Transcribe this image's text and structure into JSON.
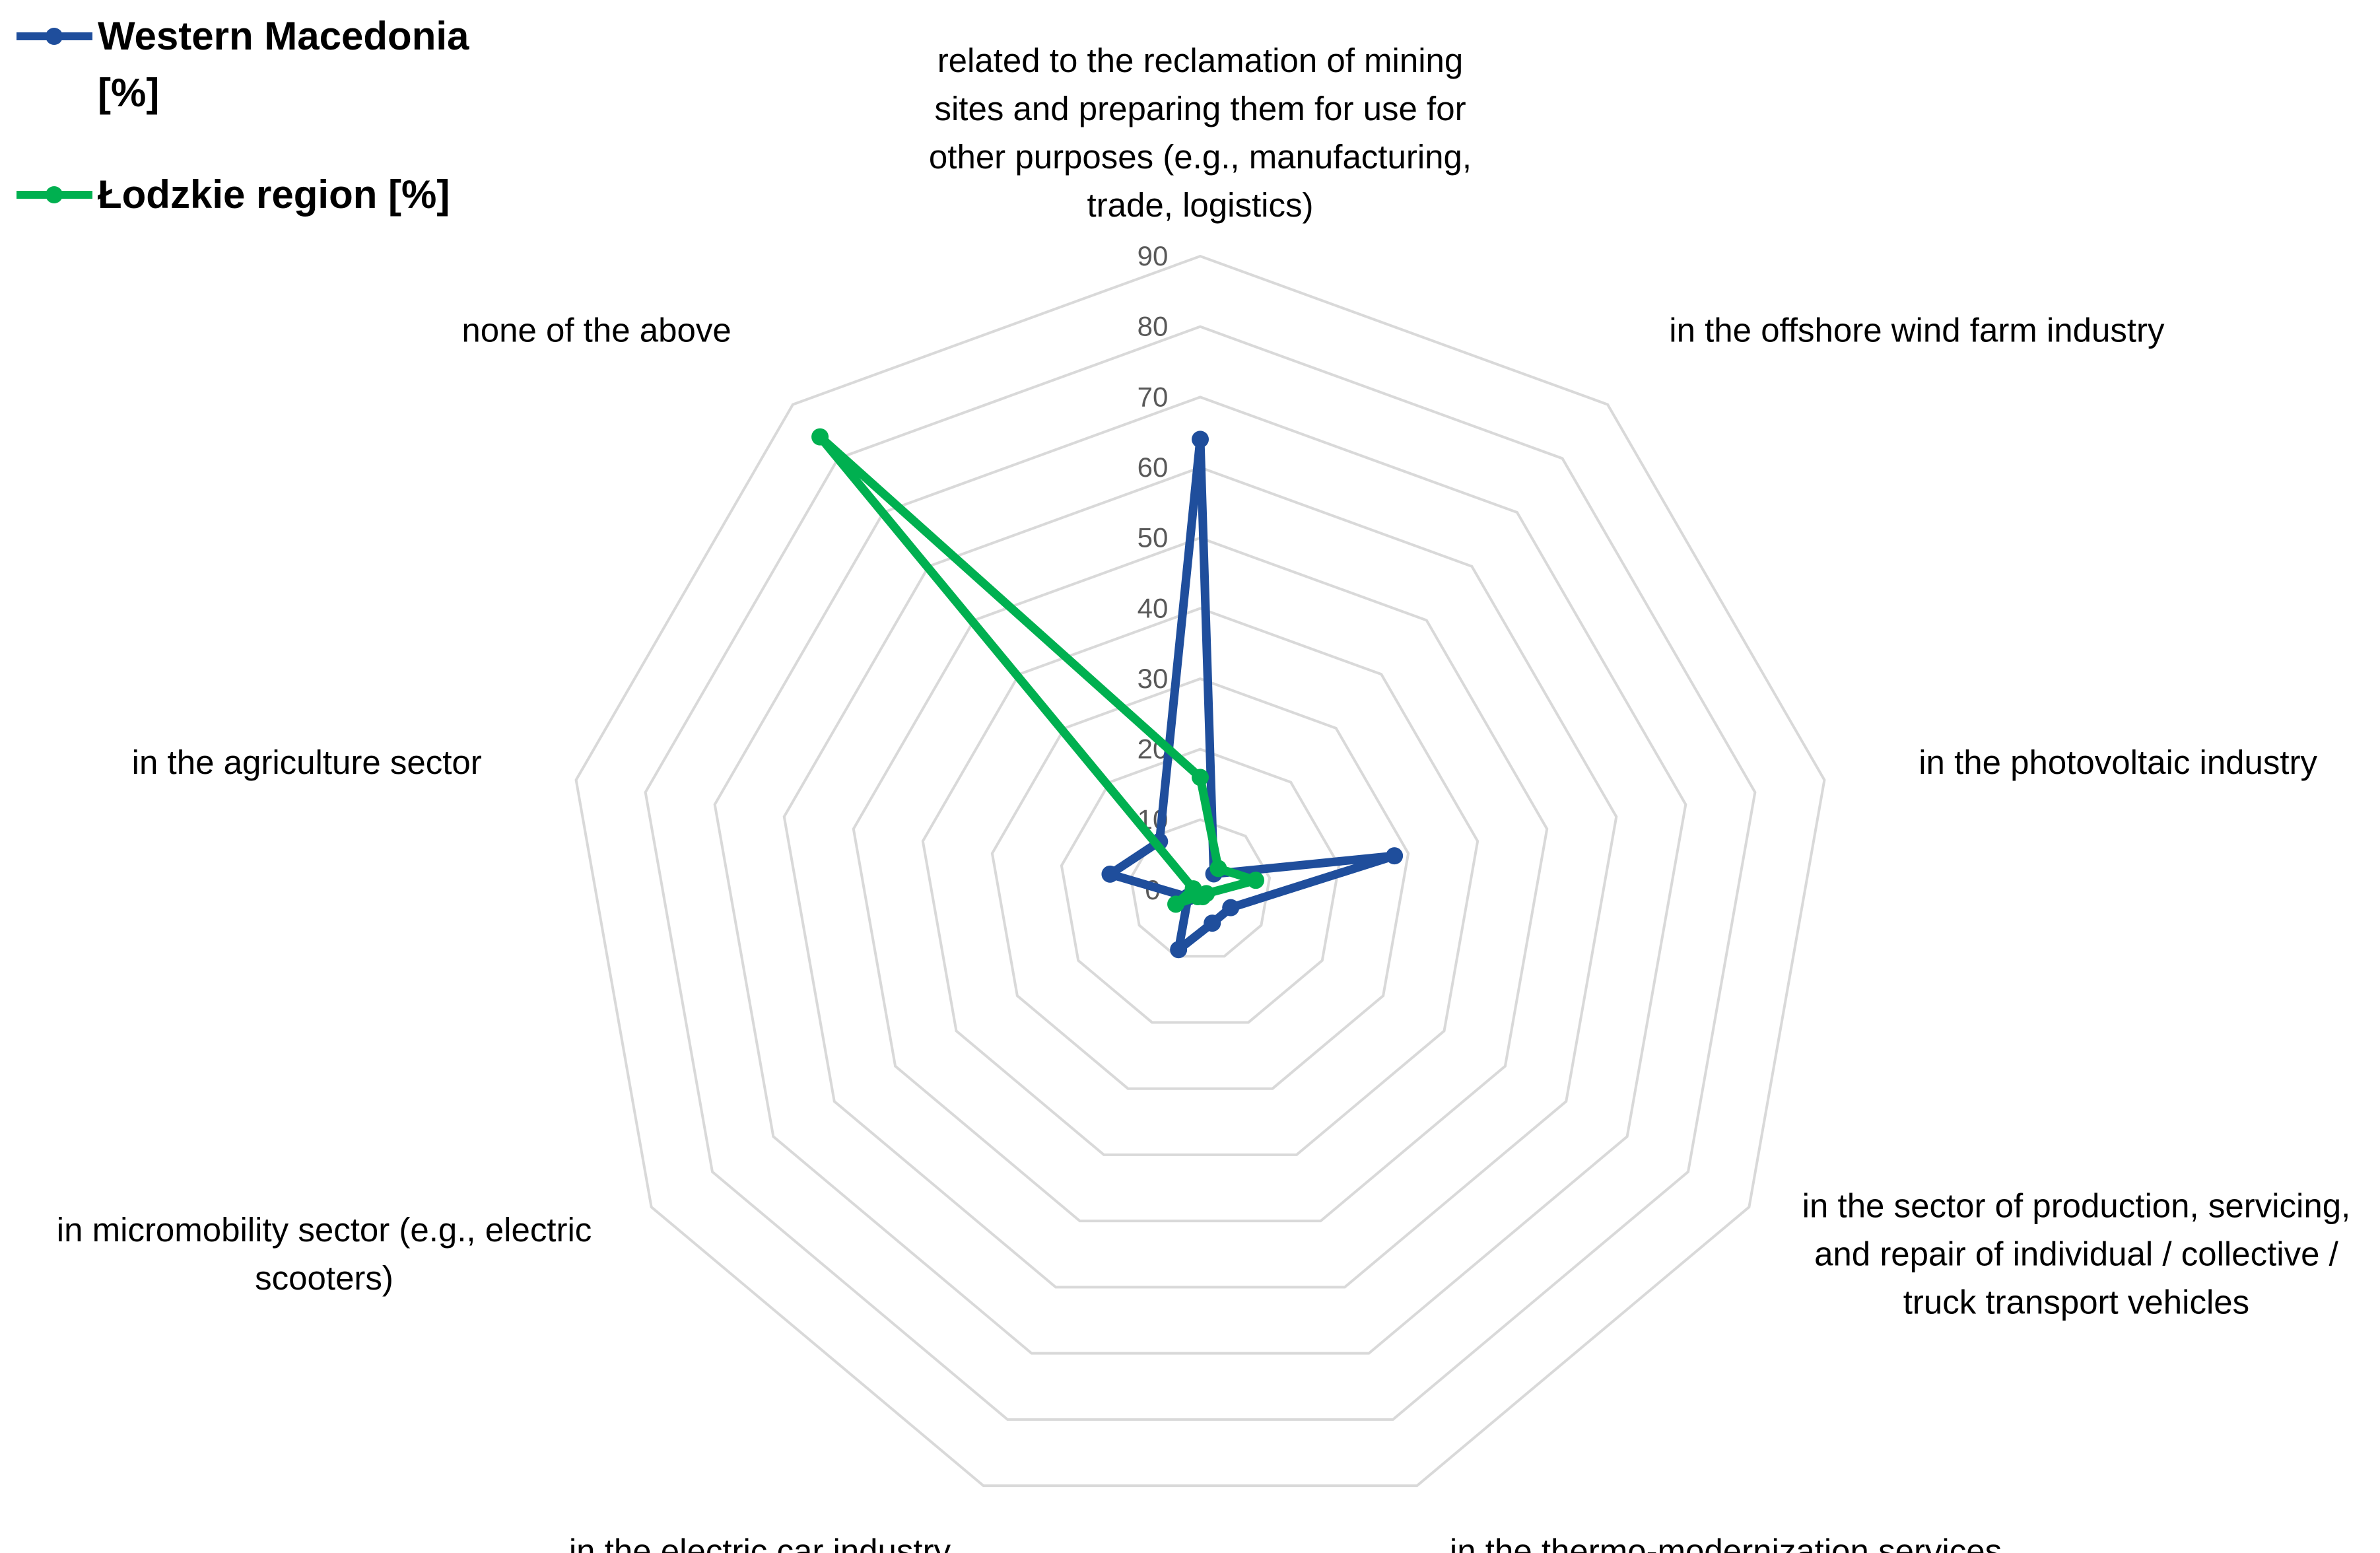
{
  "chart_data": {
    "type": "radar",
    "title": "",
    "categories": [
      [
        "related to the reclamation of mining",
        "sites and preparing them for use for",
        "other purposes (e.g., manufacturing,",
        "trade, logistics)"
      ],
      [
        "in the offshore wind farm industry"
      ],
      [
        "in the photovoltaic industry"
      ],
      [
        "in the sector of production, servicing,",
        "and repair of individual / collective /",
        "truck transport vehicles"
      ],
      [
        "in the thermo-modernization services"
      ],
      [
        "in the electric car industry"
      ],
      [
        "in micromobility sector (e.g., electric",
        "scooters)"
      ],
      [
        "in the agriculture sector"
      ],
      [
        "none of the above"
      ]
    ],
    "rlim": [
      0,
      90
    ],
    "ticks": [
      "0",
      "10",
      "20",
      "30",
      "40",
      "50",
      "60",
      "70",
      "80",
      "90"
    ],
    "grid": true,
    "legend_position": "top-left",
    "series": [
      {
        "name_lines": [
          "Western Macedonia",
          "[%]"
        ],
        "color": "#1F4E9C",
        "values": [
          64,
          3,
          28,
          5,
          5,
          9,
          2,
          13,
          9
        ]
      },
      {
        "name_lines": [
          "Łodzkie region [%]"
        ],
        "color": "#00B050",
        "values": [
          16,
          4,
          8,
          1,
          1,
          1,
          4,
          1,
          84
        ]
      }
    ]
  }
}
